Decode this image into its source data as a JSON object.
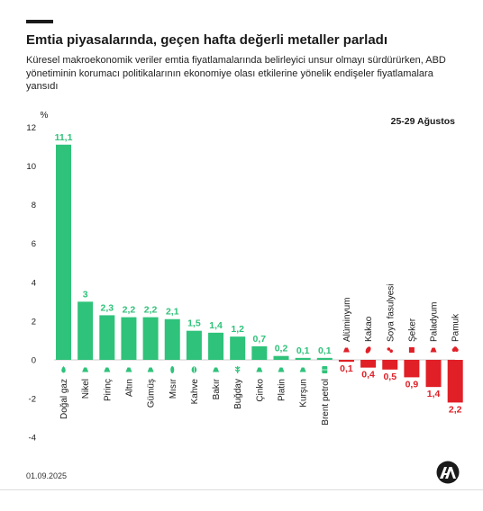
{
  "header": {
    "title": "Emtia piyasalarında, geçen hafta değerli metaller parladı",
    "subtitle": "Küresel makroekonomik veriler emtia fiyatlamalarında belirleyici unsur olmayı sürdürürken, ABD yönetiminin korumacı politikalarının ekonomiye olası etkilerine yönelik endişeler fiyatlamalara yansıdı"
  },
  "footer": {
    "date": "01.09.2025",
    "logo": "aa-logo"
  },
  "colors": {
    "positive": "#2fc27a",
    "negative": "#e01f26",
    "text": "#1a1a1a"
  },
  "chart_data": {
    "type": "bar",
    "period_label": "25-29 Ağustos",
    "unit_label": "%",
    "ylim": [
      -4,
      12
    ],
    "yticks": [
      12,
      10,
      8,
      6,
      4,
      2,
      0,
      -2,
      -4
    ],
    "grid": false,
    "categories": [
      "Doğal gaz",
      "Nikel",
      "Pirinç",
      "Altın",
      "Gümüş",
      "Mısır",
      "Kahve",
      "Bakır",
      "Buğday",
      "Çinko",
      "Platin",
      "Kurşun",
      "Brent petrol",
      "Alüminyum",
      "Kakao",
      "Soya fasulyesi",
      "Şeker",
      "Paladyum",
      "Pamuk"
    ],
    "values": [
      11.1,
      3,
      2.3,
      2.2,
      2.2,
      2.1,
      1.5,
      1.4,
      1.2,
      0.7,
      0.2,
      0.1,
      0.1,
      -0.1,
      -0.4,
      -0.5,
      -0.9,
      -1.4,
      -2.2
    ],
    "value_labels": [
      "11,1",
      "3",
      "2,3",
      "2,2",
      "2,2",
      "2,1",
      "1,5",
      "1,4",
      "1,2",
      "0,7",
      "0,2",
      "0,1",
      "0,1",
      "0,1",
      "0,4",
      "0,5",
      "0,9",
      "1,4",
      "2,2"
    ],
    "icons": [
      "flame-icon",
      "metal-icon",
      "metal-icon",
      "metal-icon",
      "metal-icon",
      "corn-icon",
      "coffee-icon",
      "metal-icon",
      "wheat-icon",
      "metal-icon",
      "metal-icon",
      "metal-icon",
      "oil-barrel-icon",
      "metal-icon",
      "cocoa-icon",
      "soybean-icon",
      "sugar-icon",
      "metal-icon",
      "cotton-icon"
    ]
  }
}
